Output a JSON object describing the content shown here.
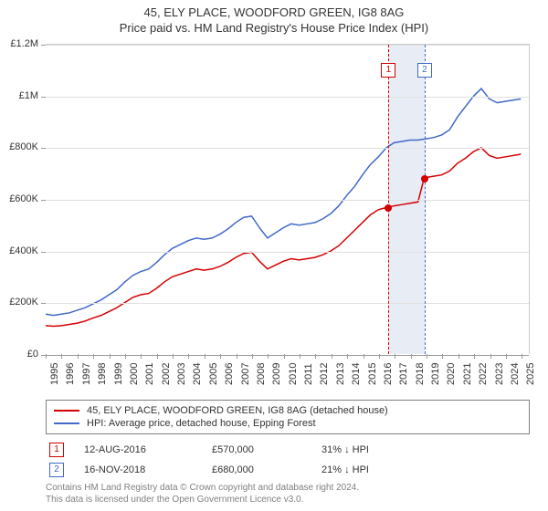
{
  "title": {
    "line1": "45, ELY PLACE, WOODFORD GREEN, IG8 8AG",
    "line2": "Price paid vs. HM Land Registry's House Price Index (HPI)"
  },
  "chart": {
    "type": "line",
    "background_color": "#ffffff",
    "grid_color": "#e0e0e0",
    "axis_color": "#999999",
    "x_years": [
      1995,
      1996,
      1997,
      1998,
      1999,
      2000,
      2001,
      2002,
      2003,
      2004,
      2005,
      2006,
      2007,
      2008,
      2009,
      2010,
      2011,
      2012,
      2013,
      2014,
      2015,
      2016,
      2017,
      2018,
      2019,
      2020,
      2021,
      2022,
      2023,
      2024,
      2025
    ],
    "x_min": 1995,
    "x_max": 2025.5,
    "y_min": 0,
    "y_max": 1200000,
    "y_ticks": [
      0,
      200000,
      400000,
      600000,
      800000,
      1000000,
      1200000
    ],
    "y_tick_labels": [
      "£0",
      "£200K",
      "£400K",
      "£600K",
      "£800K",
      "£1M",
      "£1.2M"
    ],
    "label_fontsize": 11,
    "series": {
      "price_paid": {
        "label": "45, ELY PLACE, WOODFORD GREEN, IG8 8AG (detached house)",
        "color": "#d40000",
        "line_width": 1.5,
        "data": [
          [
            1995.0,
            110000
          ],
          [
            1995.5,
            108000
          ],
          [
            1996.0,
            110000
          ],
          [
            1996.5,
            115000
          ],
          [
            1997.0,
            120000
          ],
          [
            1997.5,
            128000
          ],
          [
            1998.0,
            140000
          ],
          [
            1998.5,
            150000
          ],
          [
            1999.0,
            165000
          ],
          [
            1999.5,
            180000
          ],
          [
            2000.0,
            200000
          ],
          [
            2000.5,
            220000
          ],
          [
            2001.0,
            230000
          ],
          [
            2001.5,
            235000
          ],
          [
            2002.0,
            255000
          ],
          [
            2002.5,
            280000
          ],
          [
            2003.0,
            300000
          ],
          [
            2003.5,
            310000
          ],
          [
            2004.0,
            320000
          ],
          [
            2004.5,
            330000
          ],
          [
            2005.0,
            325000
          ],
          [
            2005.5,
            330000
          ],
          [
            2006.0,
            340000
          ],
          [
            2006.5,
            355000
          ],
          [
            2007.0,
            375000
          ],
          [
            2007.5,
            390000
          ],
          [
            2008.0,
            395000
          ],
          [
            2008.5,
            360000
          ],
          [
            2009.0,
            330000
          ],
          [
            2009.5,
            345000
          ],
          [
            2010.0,
            360000
          ],
          [
            2010.5,
            370000
          ],
          [
            2011.0,
            365000
          ],
          [
            2011.5,
            370000
          ],
          [
            2012.0,
            375000
          ],
          [
            2012.5,
            385000
          ],
          [
            2013.0,
            400000
          ],
          [
            2013.5,
            420000
          ],
          [
            2014.0,
            450000
          ],
          [
            2014.5,
            480000
          ],
          [
            2015.0,
            510000
          ],
          [
            2015.5,
            540000
          ],
          [
            2016.0,
            560000
          ],
          [
            2016.6,
            570000
          ],
          [
            2017.0,
            575000
          ],
          [
            2017.5,
            580000
          ],
          [
            2018.0,
            585000
          ],
          [
            2018.5,
            590000
          ],
          [
            2018.88,
            680000
          ],
          [
            2019.0,
            685000
          ],
          [
            2019.5,
            690000
          ],
          [
            2020.0,
            695000
          ],
          [
            2020.5,
            710000
          ],
          [
            2021.0,
            740000
          ],
          [
            2021.5,
            760000
          ],
          [
            2022.0,
            785000
          ],
          [
            2022.5,
            800000
          ],
          [
            2023.0,
            770000
          ],
          [
            2023.5,
            760000
          ],
          [
            2024.0,
            765000
          ],
          [
            2024.5,
            770000
          ],
          [
            2025.0,
            775000
          ]
        ]
      },
      "hpi": {
        "label": "HPI: Average price, detached house, Epping Forest",
        "color": "#4169c8",
        "line_width": 1.5,
        "data": [
          [
            1995.0,
            155000
          ],
          [
            1995.5,
            150000
          ],
          [
            1996.0,
            155000
          ],
          [
            1996.5,
            160000
          ],
          [
            1997.0,
            170000
          ],
          [
            1997.5,
            180000
          ],
          [
            1998.0,
            195000
          ],
          [
            1998.5,
            210000
          ],
          [
            1999.0,
            230000
          ],
          [
            1999.5,
            250000
          ],
          [
            2000.0,
            280000
          ],
          [
            2000.5,
            305000
          ],
          [
            2001.0,
            320000
          ],
          [
            2001.5,
            330000
          ],
          [
            2002.0,
            355000
          ],
          [
            2002.5,
            385000
          ],
          [
            2003.0,
            410000
          ],
          [
            2003.5,
            425000
          ],
          [
            2004.0,
            440000
          ],
          [
            2004.5,
            450000
          ],
          [
            2005.0,
            445000
          ],
          [
            2005.5,
            450000
          ],
          [
            2006.0,
            465000
          ],
          [
            2006.5,
            485000
          ],
          [
            2007.0,
            510000
          ],
          [
            2007.5,
            530000
          ],
          [
            2008.0,
            535000
          ],
          [
            2008.5,
            490000
          ],
          [
            2009.0,
            450000
          ],
          [
            2009.5,
            470000
          ],
          [
            2010.0,
            490000
          ],
          [
            2010.5,
            505000
          ],
          [
            2011.0,
            500000
          ],
          [
            2011.5,
            505000
          ],
          [
            2012.0,
            510000
          ],
          [
            2012.5,
            525000
          ],
          [
            2013.0,
            545000
          ],
          [
            2013.5,
            575000
          ],
          [
            2014.0,
            615000
          ],
          [
            2014.5,
            650000
          ],
          [
            2015.0,
            695000
          ],
          [
            2015.5,
            735000
          ],
          [
            2016.0,
            765000
          ],
          [
            2016.5,
            800000
          ],
          [
            2017.0,
            820000
          ],
          [
            2017.5,
            825000
          ],
          [
            2018.0,
            830000
          ],
          [
            2018.5,
            830000
          ],
          [
            2019.0,
            835000
          ],
          [
            2019.5,
            840000
          ],
          [
            2020.0,
            850000
          ],
          [
            2020.5,
            870000
          ],
          [
            2021.0,
            920000
          ],
          [
            2021.5,
            960000
          ],
          [
            2022.0,
            1000000
          ],
          [
            2022.5,
            1030000
          ],
          [
            2023.0,
            990000
          ],
          [
            2023.5,
            975000
          ],
          [
            2024.0,
            980000
          ],
          [
            2024.5,
            985000
          ],
          [
            2025.0,
            990000
          ]
        ]
      }
    },
    "markers": [
      {
        "index": "1",
        "year": 2016.6,
        "color": "#d40000",
        "box_top_offset": 20
      },
      {
        "index": "2",
        "year": 2018.88,
        "color": "#4169c8",
        "box_top_offset": 20
      }
    ],
    "marker_band": {
      "from_year": 2016.6,
      "to_year": 2018.88,
      "color": "#e7ecf5"
    },
    "sale_points": [
      {
        "year": 2016.6,
        "value": 570000,
        "color": "#d40000"
      },
      {
        "year": 2018.88,
        "value": 680000,
        "color": "#d40000"
      }
    ]
  },
  "legend": {
    "items": [
      {
        "color": "#d40000",
        "label": "45, ELY PLACE, WOODFORD GREEN, IG8 8AG (detached house)"
      },
      {
        "color": "#4169c8",
        "label": "HPI: Average price, detached house, Epping Forest"
      }
    ]
  },
  "sales": [
    {
      "index": "1",
      "color": "#d40000",
      "date": "12-AUG-2016",
      "price": "£570,000",
      "delta": "31% ↓ HPI"
    },
    {
      "index": "2",
      "color": "#4169c8",
      "date": "16-NOV-2018",
      "price": "£680,000",
      "delta": "21% ↓ HPI"
    }
  ],
  "footer": {
    "line1": "Contains HM Land Registry data © Crown copyright and database right 2024.",
    "line2": "This data is licensed under the Open Government Licence v3.0."
  }
}
